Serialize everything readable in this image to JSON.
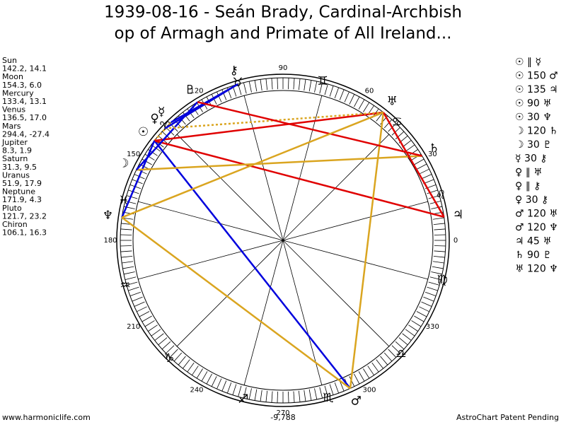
{
  "header": {
    "title_lines": [
      "1939-08-16 - Seán Brady, Cardinal-Archbish",
      "op of Armagh and Primate of All Ireland..."
    ]
  },
  "planets": [
    {
      "name": "Sun",
      "glyph": "☉",
      "position": "142.2, 14.1"
    },
    {
      "name": "Moon",
      "glyph": "☽",
      "position": "154.3, 6.0"
    },
    {
      "name": "Mercury",
      "glyph": "☿",
      "position": "133.4, 13.1"
    },
    {
      "name": "Venus",
      "glyph": "♀",
      "position": "136.5, 17.0"
    },
    {
      "name": "Mars",
      "glyph": "♂",
      "position": "294.4, -27.4"
    },
    {
      "name": "Jupiter",
      "glyph": "♃",
      "position": "8.3, 1.9"
    },
    {
      "name": "Saturn",
      "glyph": "♄",
      "position": "31.3, 9.5"
    },
    {
      "name": "Uranus",
      "glyph": "♅",
      "position": "51.9, 17.9"
    },
    {
      "name": "Neptune",
      "glyph": "♆",
      "position": "171.9, 4.3"
    },
    {
      "name": "Pluto",
      "glyph": "♇",
      "position": "121.7, 23.2"
    },
    {
      "name": "Chiron",
      "glyph": "⚷",
      "position": "106.1, 16.3"
    }
  ],
  "aspects": [
    "☉ ∥ ☿",
    "☉ 150 ♂",
    "☉ 135 ♃",
    "☉ 90 ♅",
    "☉ 30 ♆",
    "☽ 120 ♄",
    "☽ 30 ♇",
    "☿ 30 ⚷",
    "♀ ∥ ♅",
    "♀ ∥ ⚷",
    "♀ 30 ⚷",
    "♂ 120 ♅",
    "♂ 120 ♆",
    "♃ 45 ♅",
    "♄ 90 ♇",
    "♅ 120 ♆"
  ],
  "signs": [
    "♊",
    "♋",
    "♌",
    "♍",
    "♎",
    "♏",
    "♐",
    "♑",
    "♒",
    "♓",
    "♈",
    "♉"
  ],
  "degree_labels": [
    0,
    30,
    60,
    90,
    120,
    150,
    180,
    210,
    240,
    270,
    300,
    330
  ],
  "footer": {
    "site": "www.harmoniclife.com",
    "score": "-9,788",
    "note": "AstroChart Patent Pending"
  }
}
